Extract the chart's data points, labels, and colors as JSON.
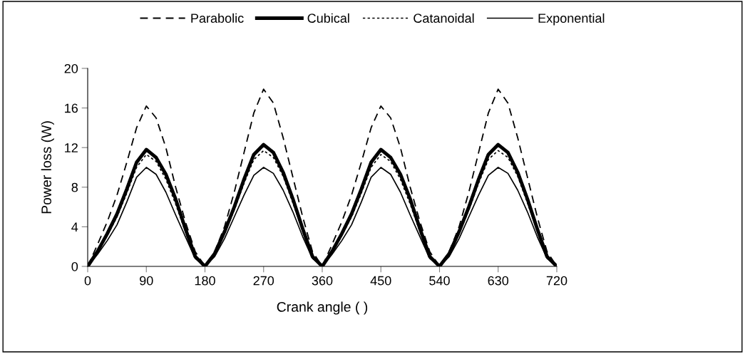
{
  "chart_data": {
    "type": "line",
    "xlabel": "Crank angle ( )",
    "ylabel": "Power loss (W)",
    "x": [
      0,
      15,
      30,
      45,
      60,
      75,
      90,
      105,
      120,
      135,
      150,
      165,
      180,
      195,
      210,
      225,
      240,
      255,
      270,
      285,
      300,
      315,
      330,
      345,
      360,
      375,
      390,
      405,
      420,
      435,
      450,
      465,
      480,
      495,
      510,
      525,
      540,
      555,
      570,
      585,
      600,
      615,
      630,
      645,
      660,
      675,
      690,
      705,
      720
    ],
    "xlim": [
      0,
      720
    ],
    "xticks": [
      0,
      90,
      180,
      270,
      360,
      450,
      540,
      630,
      720
    ],
    "ylim": [
      0,
      20
    ],
    "yticks": [
      0,
      4,
      8,
      12,
      16,
      20
    ],
    "grid": false,
    "legend": "top",
    "marker": "none",
    "series": [
      {
        "name": "Parabolic",
        "color": "#000000",
        "line_style": "dashed",
        "values": [
          0,
          2.2,
          4.5,
          7.2,
          10.5,
          14,
          16.2,
          15,
          12,
          8,
          4.5,
          1.5,
          0,
          1.5,
          4,
          7.5,
          11.5,
          15.5,
          17.9,
          16.5,
          13,
          9,
          5,
          1.5,
          0,
          2.2,
          4.5,
          7.2,
          10.5,
          14,
          16.2,
          15,
          12,
          8,
          4.5,
          1.5,
          0,
          1.5,
          4,
          7.5,
          11.5,
          15.5,
          17.9,
          16.5,
          13,
          9,
          5,
          1.5,
          0
        ]
      },
      {
        "name": "Cubical",
        "color": "#000000",
        "line_style": "solid",
        "values": [
          0,
          1.5,
          3.3,
          5.3,
          7.8,
          10.5,
          11.8,
          11,
          9.3,
          6.8,
          3.8,
          1,
          0,
          1.3,
          3.5,
          6,
          8.8,
          11.3,
          12.3,
          11.5,
          9.5,
          6.8,
          3.8,
          1,
          0,
          1.5,
          3.3,
          5.3,
          7.8,
          10.5,
          11.8,
          11,
          9.3,
          6.8,
          3.8,
          1,
          0,
          1.3,
          3.5,
          6,
          8.8,
          11.3,
          12.3,
          11.5,
          9.5,
          6.8,
          3.8,
          1,
          0
        ]
      },
      {
        "name": "Catanoidal",
        "color": "#000000",
        "line_style": "dotted",
        "values": [
          0,
          1.4,
          3.1,
          5,
          7.4,
          10,
          11.3,
          10.6,
          8.8,
          6.3,
          3.5,
          0.9,
          0,
          1.2,
          3.3,
          5.7,
          8.4,
          10.8,
          11.7,
          11,
          9.1,
          6.4,
          3.6,
          0.9,
          0,
          1.4,
          3.1,
          5,
          7.4,
          10,
          11.3,
          10.6,
          8.8,
          6.3,
          3.5,
          0.9,
          0,
          1.2,
          3.3,
          5.7,
          8.4,
          10.8,
          11.7,
          11,
          9.1,
          6.4,
          3.6,
          0.9,
          0
        ]
      },
      {
        "name": "Exponential",
        "color": "#000000",
        "line_style": "solid",
        "values": [
          0,
          1.2,
          2.6,
          4.2,
          6.5,
          9,
          10,
          9.3,
          7.5,
          5.2,
          3,
          0.8,
          0,
          1,
          2.8,
          5,
          7.2,
          9.2,
          10,
          9.4,
          7.7,
          5.5,
          3,
          0.8,
          0,
          1.2,
          2.6,
          4.2,
          6.5,
          9,
          10,
          9.3,
          7.5,
          5.2,
          3,
          0.8,
          0,
          1,
          2.8,
          5,
          7.2,
          9.2,
          10,
          9.4,
          7.7,
          5.5,
          3,
          0.8,
          0
        ]
      }
    ]
  }
}
